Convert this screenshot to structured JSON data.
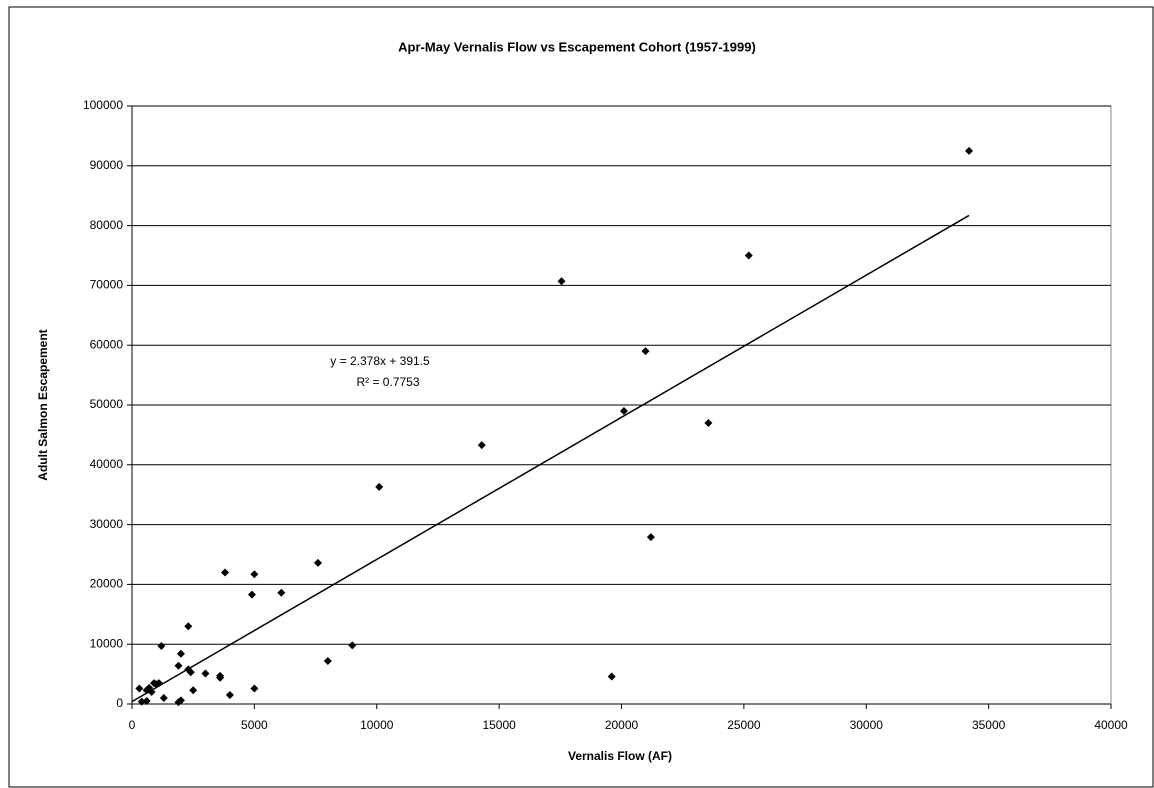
{
  "chart_data": {
    "type": "scatter",
    "title": "Apr-May Vernalis Flow vs Escapement Cohort (1957-1999)",
    "x_label": "Vernalis Flow (AF)",
    "y_label": "Adult Salmon Escapement",
    "annotations": [
      "y = 2.378x + 391.5",
      "R² = 0.7753"
    ],
    "color": "#000000",
    "x": [
      34200,
      25200,
      17550,
      20980,
      20100,
      23550,
      14290,
      10100,
      21200,
      3800,
      5000,
      4900,
      6100,
      7600,
      1200,
      2300,
      2000,
      1900,
      2300,
      2400,
      3000,
      3600,
      3600,
      4000,
      5000,
      2500,
      9000,
      8000,
      19600,
      2000,
      1900,
      1300,
      1000,
      900,
      700,
      600,
      800,
      300,
      400,
      600,
      1100
    ],
    "values": [
      92500,
      75000,
      70700,
      59000,
      49000,
      47000,
      43300,
      36300,
      27900,
      22000,
      21700,
      18300,
      18600,
      23600,
      9700,
      13000,
      8400,
      6400,
      5800,
      5300,
      5100,
      4400,
      4700,
      1500,
      2600,
      2300,
      9800,
      7200,
      4600,
      600,
      300,
      1000,
      3300,
      3500,
      2700,
      2300,
      2000,
      2600,
      400,
      500,
      3500
    ],
    "trendline": {
      "x": [
        0,
        34200
      ],
      "values": [
        400,
        81700
      ],
      "color": "#000000"
    },
    "xlim": [
      0,
      40000
    ],
    "xticks": [
      0,
      5000,
      10000,
      15000,
      20000,
      25000,
      30000,
      35000,
      40000
    ],
    "ylim": [
      0,
      100000
    ],
    "yticks": [
      0,
      10000,
      20000,
      30000,
      40000,
      50000,
      60000,
      70000,
      80000,
      90000,
      100000
    ],
    "grid": true
  }
}
